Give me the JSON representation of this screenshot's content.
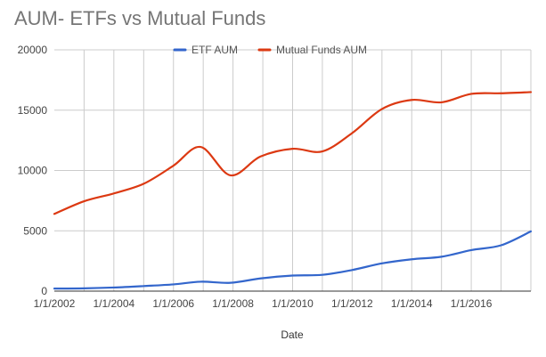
{
  "chart_data": {
    "type": "line",
    "title": "AUM- ETFs vs Mutual Funds",
    "xlabel": "Date",
    "ylabel": "",
    "x_tick_labels": [
      "1/1/2002",
      "1/1/2004",
      "1/1/2006",
      "1/1/2008",
      "1/1/2010",
      "1/1/2012",
      "1/1/2014",
      "1/1/2016"
    ],
    "y_tick_labels": [
      "0",
      "5000",
      "10000",
      "15000",
      "20000"
    ],
    "xlim": [
      "2002-01-01",
      "2018-01-01"
    ],
    "ylim": [
      0,
      20000
    ],
    "grid": true,
    "legend_position": "top",
    "x": [
      "2002-01-01",
      "2003-01-01",
      "2004-01-01",
      "2005-01-01",
      "2006-01-01",
      "2006-12-01",
      "2007-12-01",
      "2008-12-01",
      "2010-01-01",
      "2011-01-01",
      "2012-01-01",
      "2013-01-01",
      "2014-01-01",
      "2015-01-01",
      "2016-01-01",
      "2017-01-01",
      "2018-01-01"
    ],
    "series": [
      {
        "name": "ETF AUM",
        "color": "#3366cc",
        "values": [
          210,
          230,
          300,
          420,
          560,
          780,
          690,
          1050,
          1290,
          1350,
          1750,
          2300,
          2640,
          2850,
          3400,
          3800,
          4950
        ]
      },
      {
        "name": "Mutual Funds AUM",
        "color": "#dc3912",
        "values": [
          6400,
          7450,
          8100,
          8900,
          10400,
          11950,
          9600,
          11150,
          11800,
          11580,
          13100,
          15100,
          15850,
          15650,
          16350,
          16400,
          16500
        ]
      }
    ]
  }
}
